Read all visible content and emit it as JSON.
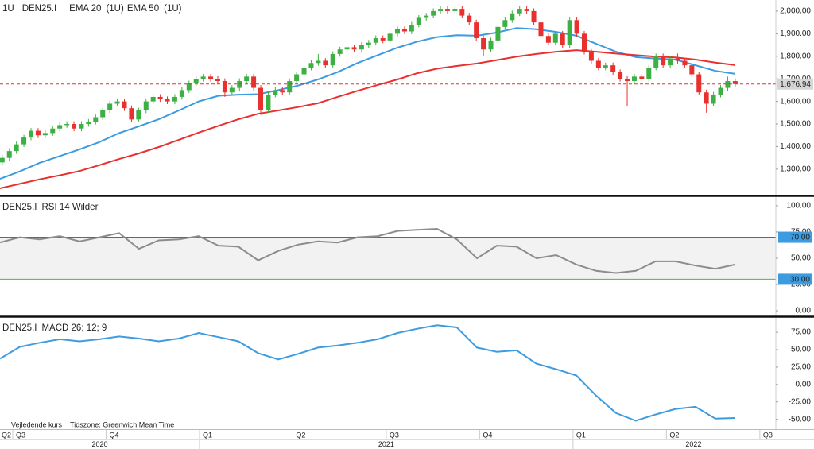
{
  "chart_data": [
    {
      "type": "candlestick",
      "symbol": "DEN25.I",
      "interval": "1U",
      "up_color": "#3cb043",
      "down_color": "#e8312f",
      "x": [
        2020.472,
        2020.491,
        2020.51,
        2020.53,
        2020.549,
        2020.568,
        2020.587,
        2020.607,
        2020.626,
        2020.645,
        2020.664,
        2020.684,
        2020.703,
        2020.722,
        2020.741,
        2020.76,
        2020.78,
        2020.799,
        2020.818,
        2020.837,
        2020.857,
        2020.876,
        2020.895,
        2020.914,
        2020.934,
        2020.953,
        2020.972,
        2020.991,
        2021.01,
        2021.03,
        2021.049,
        2021.068,
        2021.087,
        2021.107,
        2021.126,
        2021.145,
        2021.164,
        2021.184,
        2021.203,
        2021.222,
        2021.241,
        2021.26,
        2021.28,
        2021.299,
        2021.318,
        2021.337,
        2021.357,
        2021.376,
        2021.395,
        2021.414,
        2021.434,
        2021.453,
        2021.472,
        2021.491,
        2021.51,
        2021.53,
        2021.549,
        2021.568,
        2021.587,
        2021.607,
        2021.626,
        2021.645,
        2021.664,
        2021.684,
        2021.703,
        2021.722,
        2021.741,
        2021.76,
        2021.78,
        2021.799,
        2021.818,
        2021.837,
        2021.857,
        2021.876,
        2021.895,
        2021.914,
        2021.934,
        2021.953,
        2021.972,
        2021.991,
        2022.01,
        2022.03,
        2022.049,
        2022.068,
        2022.087,
        2022.107,
        2022.126,
        2022.145,
        2022.164,
        2022.184,
        2022.203,
        2022.222,
        2022.241,
        2022.26,
        2022.28,
        2022.299,
        2022.318,
        2022.337,
        2022.357,
        2022.376,
        2022.395,
        2022.414,
        2022.434
      ],
      "open": [
        1330,
        1350,
        1380,
        1410,
        1440,
        1470,
        1450,
        1460,
        1480,
        1495,
        1500,
        1480,
        1500,
        1510,
        1530,
        1560,
        1590,
        1600,
        1570,
        1520,
        1560,
        1600,
        1620,
        1610,
        1600,
        1620,
        1650,
        1680,
        1700,
        1710,
        1700,
        1690,
        1640,
        1660,
        1690,
        1710,
        1660,
        1560,
        1630,
        1650,
        1640,
        1690,
        1720,
        1750,
        1770,
        1780,
        1760,
        1810,
        1830,
        1840,
        1830,
        1850,
        1860,
        1880,
        1870,
        1900,
        1920,
        1910,
        1940,
        1970,
        1980,
        2000,
        2010,
        2000,
        2010,
        1980,
        1950,
        1880,
        1830,
        1870,
        1930,
        1960,
        1990,
        2010,
        2000,
        1950,
        1890,
        1860,
        1900,
        1850,
        1960,
        1900,
        1820,
        1780,
        1750,
        1760,
        1730,
        1700,
        1690,
        1710,
        1700,
        1750,
        1800,
        1760,
        1790,
        1780,
        1760,
        1720,
        1640,
        1590,
        1630,
        1660,
        1690
      ],
      "high": [
        1362,
        1392,
        1422,
        1452,
        1482,
        1482,
        1472,
        1492,
        1507,
        1512,
        1512,
        1512,
        1522,
        1542,
        1572,
        1602,
        1612,
        1612,
        1582,
        1572,
        1612,
        1632,
        1632,
        1622,
        1632,
        1662,
        1692,
        1712,
        1722,
        1722,
        1712,
        1702,
        1672,
        1702,
        1722,
        1722,
        1672,
        1642,
        1662,
        1662,
        1702,
        1732,
        1762,
        1782,
        1810,
        1792,
        1822,
        1842,
        1852,
        1852,
        1862,
        1872,
        1892,
        1892,
        1912,
        1932,
        1932,
        1952,
        1982,
        1992,
        2012,
        2022,
        2022,
        2022,
        2022,
        1992,
        1962,
        1892,
        1882,
        1942,
        1972,
        2002,
        2022,
        2022,
        2012,
        1962,
        1902,
        1912,
        1912,
        1972,
        1972,
        1912,
        1832,
        1792,
        1772,
        1772,
        1742,
        1712,
        1722,
        1722,
        1762,
        1812,
        1812,
        1802,
        1812,
        1792,
        1772,
        1732,
        1652,
        1642,
        1672,
        1710,
        1702
      ],
      "low": [
        1318,
        1338,
        1368,
        1398,
        1428,
        1438,
        1438,
        1448,
        1468,
        1483,
        1468,
        1468,
        1488,
        1498,
        1518,
        1548,
        1578,
        1558,
        1508,
        1508,
        1548,
        1588,
        1598,
        1588,
        1588,
        1608,
        1638,
        1668,
        1688,
        1688,
        1678,
        1620,
        1628,
        1648,
        1678,
        1648,
        1540,
        1548,
        1618,
        1628,
        1628,
        1678,
        1708,
        1738,
        1758,
        1748,
        1748,
        1798,
        1818,
        1818,
        1818,
        1838,
        1848,
        1858,
        1858,
        1888,
        1898,
        1898,
        1928,
        1958,
        1968,
        1988,
        1988,
        1988,
        1968,
        1938,
        1868,
        1800,
        1818,
        1858,
        1918,
        1948,
        1978,
        1988,
        1938,
        1878,
        1848,
        1848,
        1838,
        1838,
        1888,
        1808,
        1768,
        1738,
        1738,
        1718,
        1688,
        1580,
        1678,
        1688,
        1688,
        1738,
        1748,
        1748,
        1768,
        1748,
        1708,
        1628,
        1550,
        1578,
        1618,
        1648,
        1665
      ],
      "close": [
        1350,
        1380,
        1410,
        1440,
        1470,
        1450,
        1460,
        1480,
        1495,
        1500,
        1480,
        1500,
        1510,
        1530,
        1560,
        1590,
        1600,
        1570,
        1520,
        1560,
        1600,
        1620,
        1610,
        1600,
        1620,
        1650,
        1680,
        1700,
        1710,
        1700,
        1690,
        1640,
        1660,
        1690,
        1710,
        1660,
        1560,
        1630,
        1650,
        1640,
        1690,
        1720,
        1750,
        1770,
        1780,
        1760,
        1810,
        1830,
        1840,
        1830,
        1850,
        1860,
        1880,
        1870,
        1900,
        1920,
        1910,
        1940,
        1970,
        1980,
        2000,
        2010,
        2000,
        2010,
        1980,
        1950,
        1880,
        1830,
        1870,
        1930,
        1960,
        1990,
        2010,
        2000,
        1950,
        1890,
        1860,
        1900,
        1850,
        1960,
        1900,
        1820,
        1780,
        1750,
        1760,
        1730,
        1700,
        1690,
        1710,
        1700,
        1750,
        1800,
        1760,
        1790,
        1780,
        1760,
        1720,
        1640,
        1590,
        1630,
        1660,
        1690,
        1676.94
      ],
      "last_price": {
        "value": 1676.94,
        "label": "1,676.94",
        "color": "#e8312f"
      },
      "series": [
        {
          "name": "EMA 20",
          "interval": "(1U)",
          "color": "#3d9be0",
          "x": [
            2020.466,
            2020.519,
            2020.572,
            2020.626,
            2020.679,
            2020.732,
            2020.785,
            2020.838,
            2020.891,
            2020.945,
            2020.998,
            2021.051,
            2021.104,
            2021.157,
            2021.211,
            2021.264,
            2021.317,
            2021.37,
            2021.423,
            2021.477,
            2021.53,
            2021.583,
            2021.636,
            2021.689,
            2021.743,
            2021.796,
            2021.849,
            2021.902,
            2021.955,
            2022.009,
            2022.062,
            2022.115,
            2022.168,
            2022.221,
            2022.274,
            2022.328,
            2022.381,
            2022.434
          ],
          "values": [
            1257,
            1290,
            1328,
            1358,
            1388,
            1420,
            1460,
            1490,
            1521,
            1560,
            1600,
            1625,
            1630,
            1632,
            1650,
            1670,
            1697,
            1730,
            1770,
            1805,
            1838,
            1865,
            1885,
            1893,
            1891,
            1905,
            1925,
            1920,
            1908,
            1891,
            1855,
            1820,
            1796,
            1790,
            1785,
            1760,
            1735,
            1722
          ]
        },
        {
          "name": "EMA 50",
          "interval": "(1U)",
          "color": "#e8312f",
          "x": [
            2020.466,
            2020.519,
            2020.572,
            2020.626,
            2020.679,
            2020.732,
            2020.785,
            2020.838,
            2020.891,
            2020.945,
            2020.998,
            2021.051,
            2021.104,
            2021.157,
            2021.211,
            2021.264,
            2021.317,
            2021.37,
            2021.423,
            2021.477,
            2021.53,
            2021.583,
            2021.636,
            2021.689,
            2021.743,
            2021.796,
            2021.849,
            2021.902,
            2021.955,
            2022.009,
            2022.062,
            2022.115,
            2022.168,
            2022.221,
            2022.274,
            2022.328,
            2022.381,
            2022.434
          ],
          "values": [
            1215,
            1235,
            1255,
            1273,
            1292,
            1318,
            1345,
            1370,
            1398,
            1430,
            1462,
            1492,
            1521,
            1545,
            1560,
            1575,
            1592,
            1620,
            1647,
            1673,
            1697,
            1725,
            1745,
            1757,
            1768,
            1783,
            1798,
            1810,
            1820,
            1827,
            1820,
            1812,
            1805,
            1798,
            1795,
            1785,
            1772,
            1761
          ]
        }
      ],
      "ylim": [
        1187,
        2049
      ],
      "yticks": [
        {
          "value": 1300,
          "label": "1,300.00"
        },
        {
          "value": 1400,
          "label": "1,400.00"
        },
        {
          "value": 1500,
          "label": "1,500.00"
        },
        {
          "value": 1600,
          "label": "1,600.00"
        },
        {
          "value": 1700,
          "label": "1,700.00"
        },
        {
          "value": 1800,
          "label": "1,800.00"
        },
        {
          "value": 1900,
          "label": "1,900.00"
        },
        {
          "value": 2000,
          "label": "2,000.00"
        }
      ]
    },
    {
      "type": "line",
      "symbol": "DEN25.I",
      "title": "RSI 14 Wilder",
      "series": [
        {
          "color": "#8c8c8c",
          "x": [
            2020.466,
            2020.519,
            2020.572,
            2020.626,
            2020.679,
            2020.732,
            2020.785,
            2020.838,
            2020.891,
            2020.945,
            2020.998,
            2021.051,
            2021.104,
            2021.157,
            2021.211,
            2021.264,
            2021.317,
            2021.37,
            2021.423,
            2021.477,
            2021.53,
            2021.583,
            2021.636,
            2021.689,
            2021.743,
            2021.796,
            2021.849,
            2021.902,
            2021.955,
            2022.009,
            2022.062,
            2022.115,
            2022.168,
            2022.221,
            2022.274,
            2022.328,
            2022.381,
            2022.434
          ],
          "values": [
            65,
            70,
            68,
            71,
            66,
            70,
            74,
            59,
            67,
            68,
            71,
            62,
            61,
            48,
            57,
            63,
            66,
            65,
            70,
            71,
            76,
            77,
            78,
            68,
            50,
            62,
            61,
            50,
            53,
            44,
            38,
            36,
            38,
            47,
            47,
            43,
            40,
            44
          ]
        }
      ],
      "levels": [
        {
          "value": 70,
          "label": "70.00",
          "color": "#e8312f"
        },
        {
          "value": 30,
          "label": "30.00",
          "color": "#3cc13b"
        }
      ],
      "band_color": "#f2f2f2",
      "level_box_color": "#3d9be0",
      "ylim": [
        -4.5,
        107.5
      ],
      "yticks": [
        {
          "value": 0,
          "label": "0.00"
        },
        {
          "value": 25,
          "label": "25.00"
        },
        {
          "value": 50,
          "label": "50.00"
        },
        {
          "value": 75,
          "label": "75.00"
        },
        {
          "value": 100,
          "label": "100.00"
        }
      ]
    },
    {
      "type": "line",
      "symbol": "DEN25.I",
      "title": "MACD 26; 12; 9",
      "series": [
        {
          "color": "#3d9be0",
          "x": [
            2020.466,
            2020.519,
            2020.572,
            2020.626,
            2020.679,
            2020.732,
            2020.785,
            2020.838,
            2020.891,
            2020.945,
            2020.998,
            2021.051,
            2021.104,
            2021.157,
            2021.211,
            2021.264,
            2021.317,
            2021.37,
            2021.423,
            2021.477,
            2021.53,
            2021.583,
            2021.636,
            2021.689,
            2021.743,
            2021.796,
            2021.849,
            2021.902,
            2021.955,
            2022.009,
            2022.062,
            2022.115,
            2022.168,
            2022.221,
            2022.274,
            2022.328,
            2022.381,
            2022.434
          ],
          "values": [
            37,
            54,
            60,
            65,
            62,
            65,
            69,
            66,
            62,
            66,
            74,
            68,
            62,
            45,
            36,
            44,
            53,
            56,
            60,
            65,
            74,
            80,
            85,
            82,
            53,
            47,
            49,
            30,
            22,
            13,
            -16,
            -41,
            -52,
            -43,
            -35,
            -32,
            -49,
            -48
          ]
        }
      ],
      "ylim": [
        -64,
        94.5
      ],
      "yticks": [
        {
          "value": -50,
          "label": "-50.00"
        },
        {
          "value": -25,
          "label": "-25.00"
        },
        {
          "value": 0,
          "label": "0.00"
        },
        {
          "value": 25,
          "label": "25.00"
        },
        {
          "value": 50,
          "label": "50.00"
        },
        {
          "value": 75,
          "label": "75.00"
        }
      ],
      "xlim": [
        2020.466,
        2022.645
      ],
      "xticks": [
        {
          "value": 2020.25,
          "label": "Q2"
        },
        {
          "value": 2020.5,
          "label": "Q3"
        },
        {
          "value": 2020.75,
          "label": "Q4"
        },
        {
          "value": 2021,
          "label": "Q1"
        },
        {
          "value": 2021.25,
          "label": "Q2"
        },
        {
          "value": 2021.5,
          "label": "Q3"
        },
        {
          "value": 2021.75,
          "label": "Q4"
        },
        {
          "value": 2022,
          "label": "Q1"
        },
        {
          "value": 2022.25,
          "label": "Q2"
        },
        {
          "value": 2022.5,
          "label": "Q3"
        }
      ],
      "years": [
        2020,
        2021,
        2022
      ]
    }
  ],
  "notes": [
    "Vejledende kurs",
    "Tidszone: Greenwich Mean Time"
  ]
}
